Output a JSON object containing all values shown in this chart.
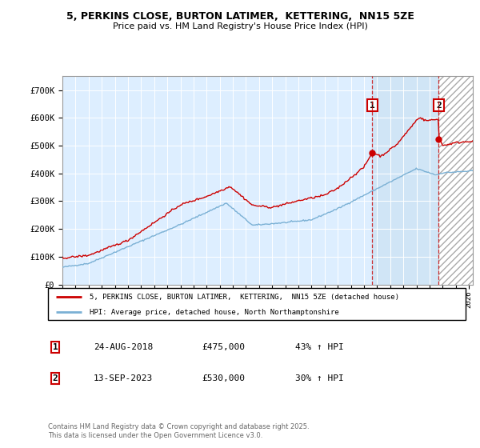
{
  "title_line1": "5, PERKINS CLOSE, BURTON LATIMER,  KETTERING,  NN15 5ZE",
  "title_line2": "Price paid vs. HM Land Registry's House Price Index (HPI)",
  "background_color": "#ffffff",
  "plot_bg_color": "#ddeeff",
  "grid_color": "#ffffff",
  "red_line_color": "#cc0000",
  "blue_line_color": "#7ab0d4",
  "sale1_x": 2018.639,
  "sale2_x": 2023.703,
  "sale1_price": 475000,
  "sale2_price": 530000,
  "legend_label1": "5, PERKINS CLOSE, BURTON LATIMER,  KETTERING,  NN15 5ZE (detached house)",
  "legend_label2": "HPI: Average price, detached house, North Northamptonshire",
  "annotation1_date": "24-AUG-2018",
  "annotation1_price": "£475,000",
  "annotation1_hpi": "43% ↑ HPI",
  "annotation2_date": "13-SEP-2023",
  "annotation2_price": "£530,000",
  "annotation2_hpi": "30% ↑ HPI",
  "footer": "Contains HM Land Registry data © Crown copyright and database right 2025.\nThis data is licensed under the Open Government Licence v3.0.",
  "ylim_max": 750000,
  "xlim_min": 1995,
  "xlim_max": 2026.3
}
